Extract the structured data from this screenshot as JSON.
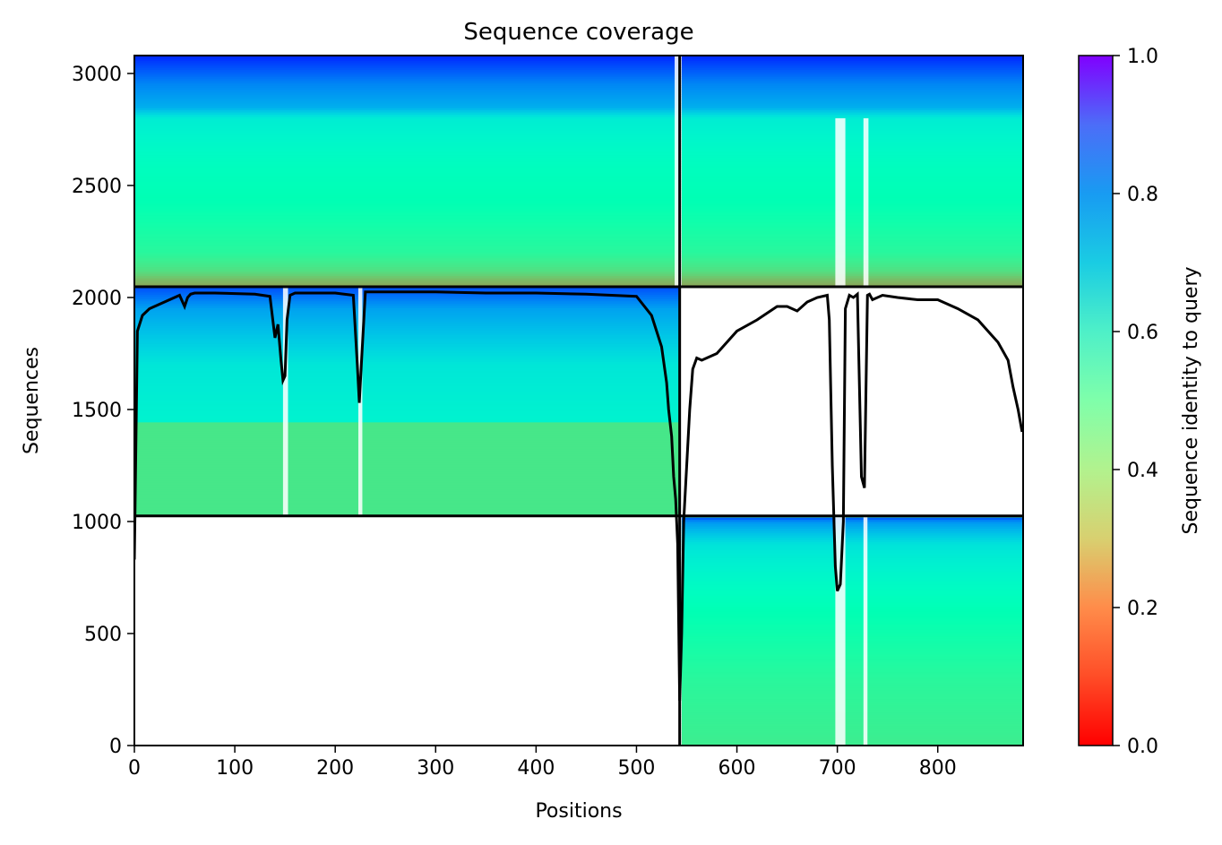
{
  "chart_data": {
    "type": "heatmap",
    "title": "Sequence coverage",
    "xlabel": "Positions",
    "ylabel": "Sequences",
    "xlim": [
      0,
      885
    ],
    "ylim": [
      0,
      3080
    ],
    "xticks": [
      0,
      100,
      200,
      300,
      400,
      500,
      600,
      700,
      800
    ],
    "yticks": [
      0,
      500,
      1000,
      1500,
      2000,
      2500,
      3000
    ],
    "colorbar": {
      "label": "Sequence identity to query",
      "colormap": "rainbow_r",
      "range": [
        0.0,
        1.0
      ],
      "ticks": [
        0.0,
        0.2,
        0.4,
        0.6,
        0.8,
        1.0
      ],
      "tick_labels": [
        "0.0",
        "0.2",
        "0.4",
        "0.6",
        "0.8",
        "1.0"
      ]
    },
    "segments": [
      {
        "x": [
          0,
          542
        ],
        "rows": [
          2048,
          3080
        ]
      },
      {
        "x": [
          545,
          885
        ],
        "rows": [
          2048,
          3080
        ]
      },
      {
        "x": [
          0,
          542
        ],
        "rows": [
          1025,
          2048
        ]
      },
      {
        "x": [
          545,
          885
        ],
        "rows": [
          0,
          1025
        ]
      }
    ],
    "coverage_line": {
      "x": [
        0,
        3,
        8,
        15,
        30,
        45,
        50,
        53,
        56,
        60,
        80,
        120,
        135,
        140,
        143,
        146,
        148,
        150,
        152,
        155,
        160,
        170,
        200,
        218,
        222,
        224,
        226,
        230,
        260,
        300,
        350,
        400,
        450,
        500,
        515,
        520,
        525,
        530,
        532,
        535,
        537,
        539,
        541,
        542,
        543,
        545,
        547,
        550,
        553,
        556,
        560,
        565,
        580,
        600,
        620,
        640,
        650,
        660,
        670,
        680,
        690,
        692,
        695,
        698,
        700,
        703,
        706,
        708,
        712,
        716,
        720,
        724,
        727,
        730,
        732,
        735,
        745,
        760,
        780,
        800,
        820,
        840,
        850,
        860,
        870,
        875,
        880,
        884
      ],
      "y": [
        830,
        1850,
        1920,
        1950,
        1980,
        2010,
        1960,
        2000,
        2015,
        2020,
        2020,
        2015,
        2005,
        1820,
        1880,
        1720,
        1630,
        1650,
        1900,
        2010,
        2020,
        2020,
        2020,
        2010,
        1700,
        1530,
        1700,
        2025,
        2025,
        2025,
        2020,
        2020,
        2015,
        2005,
        1920,
        1850,
        1780,
        1620,
        1500,
        1380,
        1200,
        1100,
        900,
        550,
        200,
        500,
        1000,
        1250,
        1500,
        1680,
        1730,
        1720,
        1750,
        1850,
        1900,
        1960,
        1960,
        1940,
        1980,
        2000,
        2010,
        1900,
        1250,
        800,
        690,
        720,
        1000,
        1950,
        2010,
        2000,
        2015,
        1200,
        1150,
        2010,
        2015,
        1990,
        2010,
        2000,
        1990,
        1990,
        1950,
        1900,
        1850,
        1800,
        1720,
        1600,
        1500,
        1400
      ]
    }
  }
}
